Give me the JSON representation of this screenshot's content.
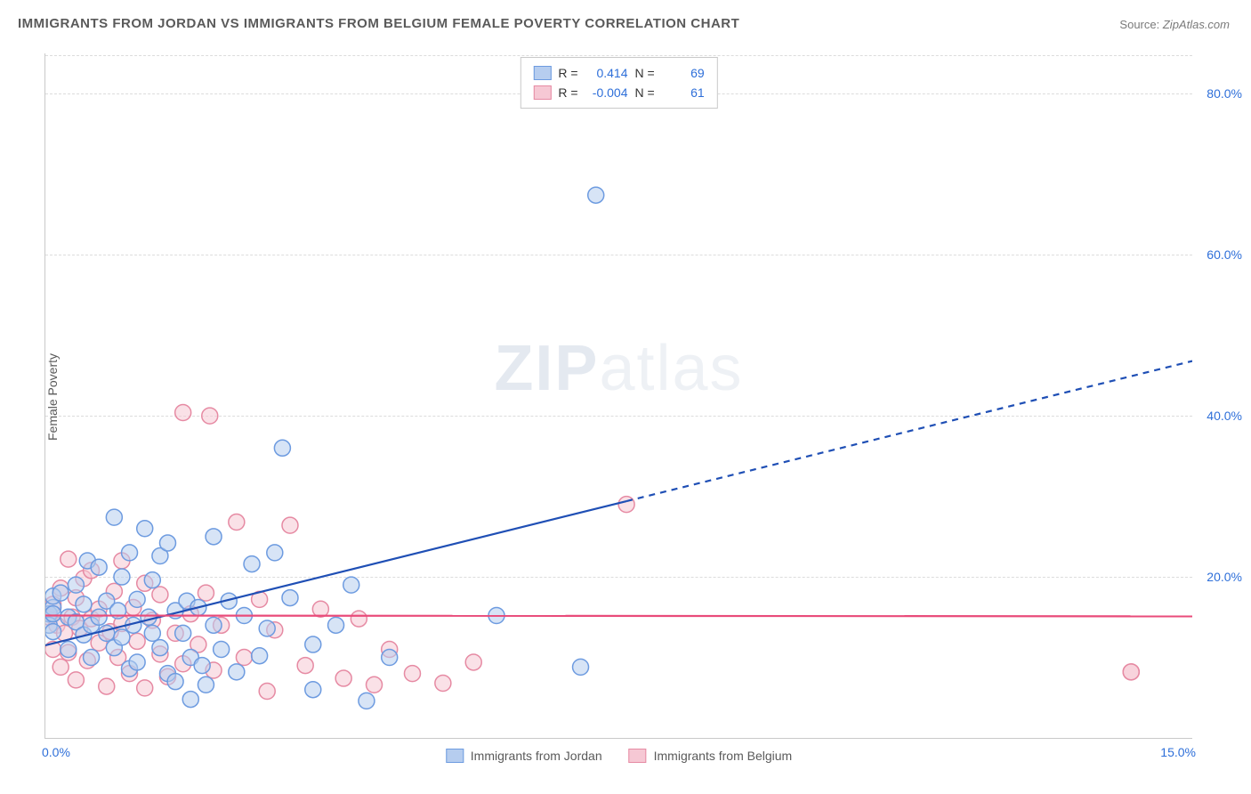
{
  "title": "IMMIGRANTS FROM JORDAN VS IMMIGRANTS FROM BELGIUM FEMALE POVERTY CORRELATION CHART",
  "source_label": "Source:",
  "source_value": "ZipAtlas.com",
  "ylabel": "Female Poverty",
  "watermark_bold": "ZIP",
  "watermark_thin": "atlas",
  "chart": {
    "type": "scatter",
    "xlim": [
      0.0,
      15.0
    ],
    "ylim": [
      0.0,
      85.0
    ],
    "x_ticks": [
      {
        "v": 0.0,
        "label": "0.0%"
      },
      {
        "v": 15.0,
        "label": "15.0%"
      }
    ],
    "y_ticks": [
      {
        "v": 20.0,
        "label": "20.0%"
      },
      {
        "v": 40.0,
        "label": "40.0%"
      },
      {
        "v": 60.0,
        "label": "60.0%"
      },
      {
        "v": 80.0,
        "label": "80.0%"
      }
    ],
    "grid_color": "#dcdcdc",
    "axis_color": "#c9c9c9",
    "background": "#ffffff",
    "marker_radius": 9,
    "marker_stroke_width": 1.5,
    "series": [
      {
        "name": "Immigrants from Jordan",
        "fill": "#b6cdef",
        "stroke": "#6d9be0",
        "fill_opacity": 0.55,
        "R": "0.414",
        "N": "69",
        "trend": {
          "color": "#1f4fb5",
          "width": 2.2,
          "solid_from": [
            0.0,
            11.5
          ],
          "solid_to": [
            7.6,
            29.4
          ],
          "dash_to": [
            15.0,
            46.8
          ]
        },
        "points": [
          [
            0.05,
            15.4
          ],
          [
            0.05,
            15.4
          ],
          [
            0.05,
            14.0
          ],
          [
            0.1,
            16.2
          ],
          [
            0.1,
            17.6
          ],
          [
            0.1,
            15.4
          ],
          [
            0.1,
            13.2
          ],
          [
            0.2,
            18.0
          ],
          [
            0.3,
            11.0
          ],
          [
            0.3,
            15.0
          ],
          [
            0.4,
            14.4
          ],
          [
            0.4,
            19.0
          ],
          [
            0.5,
            12.8
          ],
          [
            0.5,
            16.6
          ],
          [
            0.55,
            22.0
          ],
          [
            0.6,
            14.0
          ],
          [
            0.6,
            10.0
          ],
          [
            0.7,
            15.0
          ],
          [
            0.7,
            21.2
          ],
          [
            0.8,
            13.0
          ],
          [
            0.8,
            17.0
          ],
          [
            0.9,
            27.4
          ],
          [
            0.9,
            11.2
          ],
          [
            0.95,
            15.8
          ],
          [
            1.0,
            20.0
          ],
          [
            1.0,
            12.5
          ],
          [
            1.1,
            23.0
          ],
          [
            1.1,
            8.6
          ],
          [
            1.15,
            14.0
          ],
          [
            1.2,
            17.2
          ],
          [
            1.2,
            9.4
          ],
          [
            1.3,
            26.0
          ],
          [
            1.35,
            15.0
          ],
          [
            1.4,
            13.0
          ],
          [
            1.4,
            19.6
          ],
          [
            1.5,
            11.2
          ],
          [
            1.5,
            22.6
          ],
          [
            1.6,
            24.2
          ],
          [
            1.6,
            8.0
          ],
          [
            1.7,
            15.8
          ],
          [
            1.7,
            7.0
          ],
          [
            1.8,
            13.0
          ],
          [
            1.85,
            17.0
          ],
          [
            1.9,
            10.0
          ],
          [
            1.9,
            4.8
          ],
          [
            2.0,
            16.2
          ],
          [
            2.05,
            9.0
          ],
          [
            2.1,
            6.6
          ],
          [
            2.2,
            25.0
          ],
          [
            2.2,
            14.0
          ],
          [
            2.3,
            11.0
          ],
          [
            2.4,
            17.0
          ],
          [
            2.5,
            8.2
          ],
          [
            2.6,
            15.2
          ],
          [
            2.7,
            21.6
          ],
          [
            2.8,
            10.2
          ],
          [
            2.9,
            13.6
          ],
          [
            3.0,
            23.0
          ],
          [
            3.1,
            36.0
          ],
          [
            3.2,
            17.4
          ],
          [
            3.5,
            11.6
          ],
          [
            3.5,
            6.0
          ],
          [
            3.8,
            14.0
          ],
          [
            4.0,
            19.0
          ],
          [
            4.2,
            4.6
          ],
          [
            4.5,
            10.0
          ],
          [
            5.9,
            15.2
          ],
          [
            7.2,
            67.4
          ],
          [
            7.0,
            8.8
          ]
        ]
      },
      {
        "name": "Immigrants from Belgium",
        "fill": "#f6c8d4",
        "stroke": "#e68aa3",
        "fill_opacity": 0.55,
        "R": "-0.004",
        "N": "61",
        "trend": {
          "color": "#e94b7a",
          "width": 2.2,
          "solid_from": [
            0.0,
            15.2
          ],
          "solid_to": [
            15.0,
            15.1
          ],
          "dash_to": null
        },
        "points": [
          [
            0.05,
            15.0
          ],
          [
            0.1,
            11.0
          ],
          [
            0.1,
            16.6
          ],
          [
            0.15,
            14.0
          ],
          [
            0.2,
            18.6
          ],
          [
            0.2,
            8.8
          ],
          [
            0.25,
            13.0
          ],
          [
            0.3,
            22.2
          ],
          [
            0.3,
            10.6
          ],
          [
            0.35,
            15.0
          ],
          [
            0.4,
            17.4
          ],
          [
            0.4,
            7.2
          ],
          [
            0.45,
            13.6
          ],
          [
            0.5,
            19.8
          ],
          [
            0.55,
            9.6
          ],
          [
            0.6,
            14.8
          ],
          [
            0.6,
            20.8
          ],
          [
            0.7,
            11.8
          ],
          [
            0.7,
            16.0
          ],
          [
            0.8,
            6.4
          ],
          [
            0.85,
            13.2
          ],
          [
            0.9,
            18.2
          ],
          [
            0.95,
            10.0
          ],
          [
            1.0,
            22.0
          ],
          [
            1.0,
            14.2
          ],
          [
            1.1,
            8.0
          ],
          [
            1.15,
            16.2
          ],
          [
            1.2,
            12.0
          ],
          [
            1.3,
            19.2
          ],
          [
            1.3,
            6.2
          ],
          [
            1.4,
            14.6
          ],
          [
            1.5,
            10.4
          ],
          [
            1.5,
            17.8
          ],
          [
            1.6,
            7.6
          ],
          [
            1.7,
            13.0
          ],
          [
            1.8,
            40.4
          ],
          [
            1.8,
            9.2
          ],
          [
            1.9,
            15.4
          ],
          [
            2.0,
            11.6
          ],
          [
            2.1,
            18.0
          ],
          [
            2.15,
            40.0
          ],
          [
            2.2,
            8.4
          ],
          [
            2.3,
            14.0
          ],
          [
            2.5,
            26.8
          ],
          [
            2.6,
            10.0
          ],
          [
            2.8,
            17.2
          ],
          [
            2.9,
            5.8
          ],
          [
            3.0,
            13.4
          ],
          [
            3.2,
            26.4
          ],
          [
            3.4,
            9.0
          ],
          [
            3.6,
            16.0
          ],
          [
            3.9,
            7.4
          ],
          [
            4.1,
            14.8
          ],
          [
            4.3,
            6.6
          ],
          [
            4.5,
            11.0
          ],
          [
            4.8,
            8.0
          ],
          [
            5.2,
            6.8
          ],
          [
            5.6,
            9.4
          ],
          [
            7.6,
            29.0
          ],
          [
            14.2,
            8.2
          ],
          [
            14.2,
            8.2
          ]
        ]
      }
    ]
  },
  "stats_prefix_R": "R =",
  "stats_prefix_N": "N ="
}
